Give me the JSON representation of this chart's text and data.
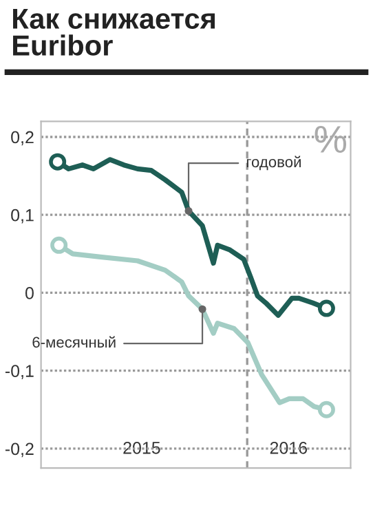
{
  "chart_data": {
    "type": "line",
    "title": "Как снижается\nEuribor",
    "ylabel": "%",
    "xlim": [
      "2015-03-08",
      "2016-05-30"
    ],
    "ylim": [
      -0.225,
      0.22
    ],
    "xticks": [
      {
        "value": "2015-08-01",
        "label": "2015"
      },
      {
        "value": "2016-03-01",
        "label": "2016"
      }
    ],
    "yticks": [
      {
        "value": -0.2,
        "label": "-0,2"
      },
      {
        "value": -0.1,
        "label": "-0,1"
      },
      {
        "value": 0,
        "label": "0"
      },
      {
        "value": 0.1,
        "label": "0,1"
      },
      {
        "value": 0.2,
        "label": "0,2"
      }
    ],
    "grid": "y",
    "legend": false,
    "line_style": "solid",
    "ref_lines": [
      {
        "axis": "x",
        "value": "2016-01-01",
        "label": null,
        "color": "#999999",
        "line_style": "dashed"
      }
    ],
    "series": [
      {
        "name": "годовой",
        "color": "#1e5e55",
        "x": [
          "2015-04-01",
          "2015-04-17",
          "2015-05-07",
          "2015-05-23",
          "2015-06-16",
          "2015-07-06",
          "2015-07-26",
          "2015-08-15",
          "2015-09-04",
          "2015-09-28",
          "2015-10-08",
          "2015-10-28",
          "2015-11-13",
          "2015-11-19",
          "2015-12-07",
          "2015-12-27",
          "2016-01-06",
          "2016-01-16",
          "2016-01-28",
          "2016-02-15",
          "2016-03-06",
          "2016-03-16",
          "2016-04-05",
          "2016-04-25"
        ],
        "values": [
          0.168,
          0.159,
          0.164,
          0.159,
          0.171,
          0.164,
          0.159,
          0.157,
          0.145,
          0.129,
          0.105,
          0.086,
          0.038,
          0.061,
          0.055,
          0.043,
          0.02,
          -0.004,
          -0.013,
          -0.029,
          -0.007,
          -0.007,
          -0.013,
          -0.02
        ]
      },
      {
        "name": "6-месячный",
        "color": "#a3cdc4",
        "x": [
          "2015-04-03",
          "2015-04-23",
          "2015-06-02",
          "2015-07-26",
          "2015-09-04",
          "2015-09-28",
          "2015-10-08",
          "2015-10-28",
          "2015-11-13",
          "2015-11-19",
          "2015-12-13",
          "2016-01-02",
          "2016-01-22",
          "2016-02-17",
          "2016-03-02",
          "2016-03-22",
          "2016-04-07",
          "2016-04-25"
        ],
        "values": [
          0.061,
          0.05,
          0.046,
          0.041,
          0.029,
          0.014,
          -0.004,
          -0.021,
          -0.052,
          -0.039,
          -0.046,
          -0.064,
          -0.105,
          -0.141,
          -0.136,
          -0.136,
          -0.146,
          -0.15
        ]
      }
    ]
  }
}
